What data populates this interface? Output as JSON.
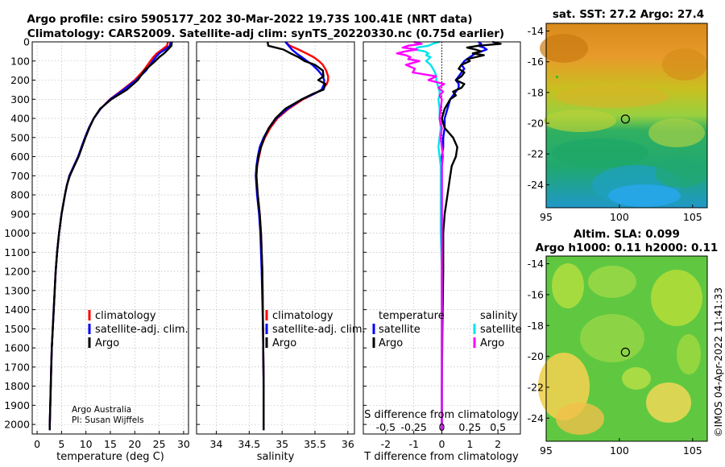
{
  "chart_data": [
    {
      "type": "line",
      "title": "Argo profile: csiro 5905177_202 30-Mar-2022 19.73S 100.41E (NRT data)",
      "subtitle": "Climatology: CARS2009. Satellite-adj clim: synTS_20220330.nc (0.75d earlier)",
      "xlabel": "temperature (deg C)",
      "xlim": [
        -1,
        31
      ],
      "ylim": [
        2050,
        0
      ],
      "x_ticks": [
        0,
        5,
        10,
        15,
        20,
        25,
        30
      ],
      "y_ticks": [
        0,
        100,
        200,
        300,
        400,
        500,
        600,
        700,
        800,
        900,
        1000,
        1100,
        1200,
        1300,
        1400,
        1500,
        1600,
        1700,
        1800,
        1900,
        2000
      ],
      "legend": [
        "climatology",
        "satellite-adj. clim.",
        "Argo"
      ],
      "notes": [
        "Argo Australia",
        "PI: Susan Wijffels"
      ],
      "depth": [
        0,
        20,
        40,
        60,
        80,
        100,
        150,
        200,
        250,
        300,
        350,
        400,
        450,
        500,
        550,
        600,
        650,
        700,
        750,
        800,
        900,
        1000,
        1100,
        1200,
        1300,
        1400,
        1500,
        1600,
        1700,
        1800,
        1900,
        2000,
        2030
      ],
      "series": [
        {
          "name": "climatology",
          "color": "#ff0000",
          "values": [
            26.8,
            26.6,
            25.6,
            24.5,
            23.8,
            23.2,
            21.8,
            20.0,
            17.5,
            14.9,
            13.0,
            11.6,
            10.6,
            9.8,
            9.1,
            8.4,
            7.5,
            6.6,
            6.1,
            5.7,
            5.0,
            4.5,
            4.1,
            3.8,
            3.6,
            3.4,
            3.2,
            3.0,
            2.9,
            2.8,
            2.7,
            2.6,
            2.6
          ]
        },
        {
          "name": "satellite-adj. clim.",
          "color": "#0000ff",
          "values": [
            27.3,
            27.2,
            26.2,
            25.0,
            24.3,
            23.7,
            22.3,
            20.3,
            17.7,
            15.0,
            13.0,
            11.6,
            10.6,
            9.8,
            9.1,
            8.4,
            7.5,
            6.6,
            6.1,
            5.7,
            5.0,
            4.5,
            4.1,
            3.8,
            3.6,
            3.4,
            3.2,
            3.0,
            2.9,
            2.8,
            2.7,
            2.6,
            2.6
          ]
        },
        {
          "name": "Argo",
          "color": "#000000",
          "values": [
            27.6,
            27.5,
            26.8,
            26.0,
            25.0,
            24.2,
            22.0,
            20.6,
            18.4,
            15.2,
            12.9,
            11.6,
            10.7,
            9.9,
            9.2,
            8.5,
            7.6,
            6.7,
            6.1,
            5.7,
            5.0,
            4.5,
            4.1,
            3.8,
            3.6,
            3.4,
            3.2,
            3.0,
            2.9,
            2.8,
            2.7,
            2.6,
            2.6
          ]
        }
      ]
    },
    {
      "type": "line",
      "xlabel": "salinity",
      "xlim": [
        33.7,
        36.1
      ],
      "ylim": [
        2050,
        0
      ],
      "x_ticks": [
        34,
        34.5,
        35,
        35.5,
        36
      ],
      "legend": [
        "climatology",
        "satellite-adj. clim.",
        "Argo"
      ],
      "depth": [
        0,
        20,
        40,
        60,
        80,
        100,
        120,
        150,
        180,
        200,
        220,
        250,
        270,
        300,
        350,
        400,
        450,
        500,
        550,
        600,
        650,
        700,
        750,
        800,
        900,
        1000,
        1200,
        1500,
        1800,
        2000,
        2030
      ],
      "series": [
        {
          "name": "climatology",
          "color": "#ff0000",
          "values": [
            35.05,
            35.12,
            35.25,
            35.37,
            35.48,
            35.56,
            35.62,
            35.67,
            35.7,
            35.7,
            35.68,
            35.6,
            35.5,
            35.32,
            35.1,
            34.93,
            34.82,
            34.74,
            34.68,
            34.65,
            34.62,
            34.61,
            34.62,
            34.63,
            34.66,
            34.68,
            34.7,
            34.71,
            34.72,
            34.72,
            34.72
          ]
        },
        {
          "name": "satellite-adj. clim.",
          "color": "#0000ff",
          "values": [
            35.05,
            35.1,
            35.15,
            35.22,
            35.3,
            35.38,
            35.46,
            35.55,
            35.62,
            35.64,
            35.64,
            35.6,
            35.5,
            35.3,
            35.08,
            34.91,
            34.8,
            34.72,
            34.66,
            34.63,
            34.61,
            34.6,
            34.61,
            34.62,
            34.65,
            34.67,
            34.69,
            34.71,
            34.72,
            34.72,
            34.72
          ]
        },
        {
          "name": "Argo",
          "color": "#000000",
          "values": [
            34.78,
            34.79,
            35.02,
            35.13,
            35.25,
            35.34,
            35.5,
            35.62,
            35.63,
            35.55,
            35.66,
            35.63,
            35.48,
            35.3,
            35.05,
            34.9,
            34.8,
            34.73,
            34.68,
            34.64,
            34.62,
            34.61,
            34.62,
            34.63,
            34.66,
            34.68,
            34.7,
            34.71,
            34.72,
            34.72,
            34.72
          ]
        }
      ]
    },
    {
      "type": "line",
      "xlabel": "T difference from climatology",
      "xlabel2": "S difference from climatology",
      "xlim": [
        -2.8,
        2.8
      ],
      "x_ticks": [
        -2,
        -1,
        0,
        1,
        2
      ],
      "x2_ticks": [
        -0.5,
        -0.25,
        0,
        0.25,
        0.5
      ],
      "x2_tick_labels": [
        "-0.5",
        "-0.25",
        "0",
        "0.25",
        "0.5"
      ],
      "ylim": [
        2050,
        0
      ],
      "legend_temperature": {
        "title": "temperature",
        "items": [
          "satellite",
          "Argo"
        ]
      },
      "legend_salinity": {
        "title": "salinity",
        "items": [
          "satellite",
          "Argo"
        ]
      },
      "depth": [
        0,
        10,
        20,
        30,
        40,
        50,
        60,
        70,
        80,
        90,
        100,
        120,
        140,
        160,
        180,
        200,
        220,
        240,
        260,
        280,
        300,
        350,
        400,
        450,
        500,
        550,
        600,
        650,
        700,
        800,
        900,
        1000,
        1200,
        1500,
        1800,
        2000,
        2030
      ],
      "series": [
        {
          "name": "T satellite",
          "color": "#0000ff",
          "values": [
            1.3,
            1.4,
            1.3,
            1.5,
            1.6,
            1.4,
            1.2,
            1.1,
            1.0,
            0.9,
            0.8,
            0.7,
            0.8,
            0.7,
            0.6,
            0.5,
            0.6,
            0.6,
            0.5,
            0.4,
            0.3,
            0.2,
            0.1,
            0.1,
            0.05,
            0.05,
            0.0,
            0.0,
            0.0,
            0.0,
            0.0,
            0.0,
            0.0,
            0.0,
            0.0,
            0.0,
            0.0
          ]
        },
        {
          "name": "T Argo",
          "color": "#000000",
          "values": [
            1.8,
            2.1,
            1.3,
            0.9,
            1.2,
            1.4,
            1.1,
            1.5,
            1.2,
            0.9,
            1.0,
            0.7,
            0.6,
            0.8,
            0.7,
            0.5,
            0.8,
            0.7,
            0.4,
            0.5,
            0.3,
            0.1,
            0.0,
            0.1,
            0.4,
            0.55,
            0.5,
            0.35,
            0.3,
            0.2,
            0.1,
            0.05,
            0.05,
            0.02,
            0.0,
            0.0,
            0.0
          ]
        },
        {
          "name": "S satellite",
          "color": "#00e5ee",
          "values": [
            -0.02,
            -0.08,
            -0.12,
            -0.22,
            -0.24,
            -0.15,
            -0.12,
            -0.14,
            -0.1,
            -0.12,
            -0.14,
            -0.1,
            -0.08,
            -0.06,
            -0.05,
            -0.05,
            -0.04,
            -0.03,
            -0.02,
            -0.02,
            -0.03,
            -0.02,
            -0.02,
            -0.01,
            -0.02,
            -0.03,
            -0.02,
            -0.01,
            -0.01,
            -0.01,
            -0.01,
            -0.01,
            0.0,
            0.0,
            0.0,
            0.0,
            0.0
          ]
        },
        {
          "name": "S Argo",
          "color": "#ff00ff",
          "values": [
            -0.25,
            -0.18,
            -0.3,
            -0.35,
            -0.22,
            -0.33,
            -0.4,
            -0.32,
            -0.28,
            -0.3,
            -0.2,
            -0.32,
            -0.24,
            -0.26,
            -0.05,
            -0.12,
            0.02,
            -0.03,
            0.01,
            -0.02,
            0.0,
            -0.01,
            -0.02,
            0.0,
            -0.01,
            0.0,
            0.01,
            0.0,
            0.0,
            0.0,
            0.0,
            0.0,
            0.0,
            0.0,
            0.0,
            0.0,
            0.0
          ]
        }
      ]
    },
    {
      "type": "heatmap",
      "title": "sat. SST: 27.2 Argo: 27.4",
      "xlim": [
        95,
        106
      ],
      "ylim": [
        -25.5,
        -13.5
      ],
      "x_ticks": [
        95,
        100,
        105
      ],
      "y_ticks": [
        -14,
        -16,
        -18,
        -20,
        -22,
        -24
      ],
      "marker": {
        "lon": 100.41,
        "lat": -19.73
      }
    },
    {
      "type": "heatmap",
      "title": "Altim. SLA: 0.099",
      "subtitle": "Argo h1000: 0.11 h2000: 0.11",
      "xlim": [
        95,
        106
      ],
      "ylim": [
        -25.5,
        -13.5
      ],
      "x_ticks": [
        95,
        100,
        105
      ],
      "y_ticks": [
        -14,
        -16,
        -18,
        -20,
        -22,
        -24
      ],
      "marker": {
        "lon": 100.41,
        "lat": -19.73
      }
    }
  ],
  "footer_stamp": "©IMOS 04-Apr-2022 11:41:33",
  "colors": {
    "climatology": "#ff0000",
    "satellite_adj": "#0000ff",
    "argo": "#000000",
    "sat_salinity": "#00e5ee",
    "argo_salinity": "#ff00ff"
  }
}
